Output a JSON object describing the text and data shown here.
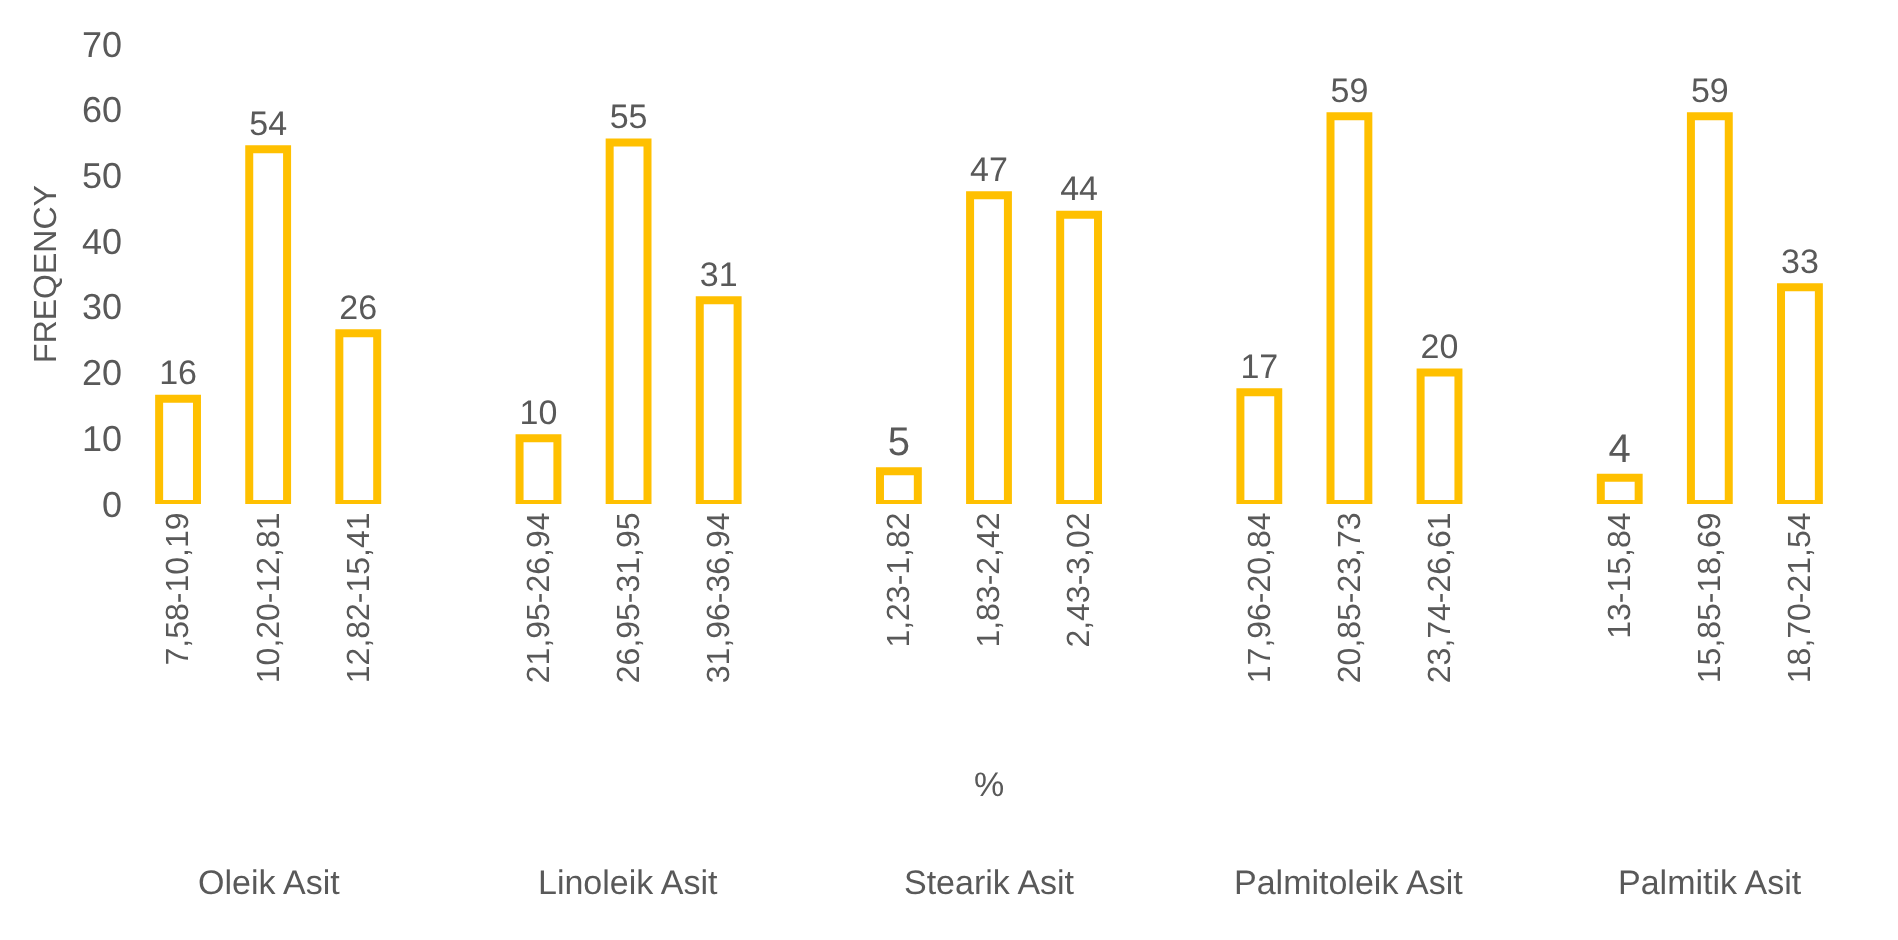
{
  "chart_data": {
    "type": "bar",
    "xlabel": "%",
    "ylabel": "FREQENCY",
    "categories": [
      "7,58-10,19",
      "10,20-12,81",
      "12,82-15,41",
      "21,95-26,94",
      "26,95-31,95",
      "31,96-36,94",
      "1,23-1,82",
      "1,83-2,42",
      "2,43-3,02",
      "17,96-20,84",
      "20,85-23,73",
      "23,74-26,61",
      "13-15,84",
      "15,85-18,69",
      "18,70-21,54"
    ],
    "values": [
      16,
      54,
      26,
      10,
      55,
      31,
      5,
      47,
      44,
      17,
      59,
      20,
      4,
      59,
      33
    ],
    "color": "#ffc000",
    "annotations": [
      "Oleik Asit",
      "Linoleik Asit",
      "Stearik Asit",
      "Palmitoleik Asit",
      "Palmitik Asit"
    ],
    "ylim": [
      0,
      70
    ],
    "yticks": [
      0,
      10,
      20,
      30,
      40,
      50,
      60,
      70
    ],
    "data_labels": true
  }
}
